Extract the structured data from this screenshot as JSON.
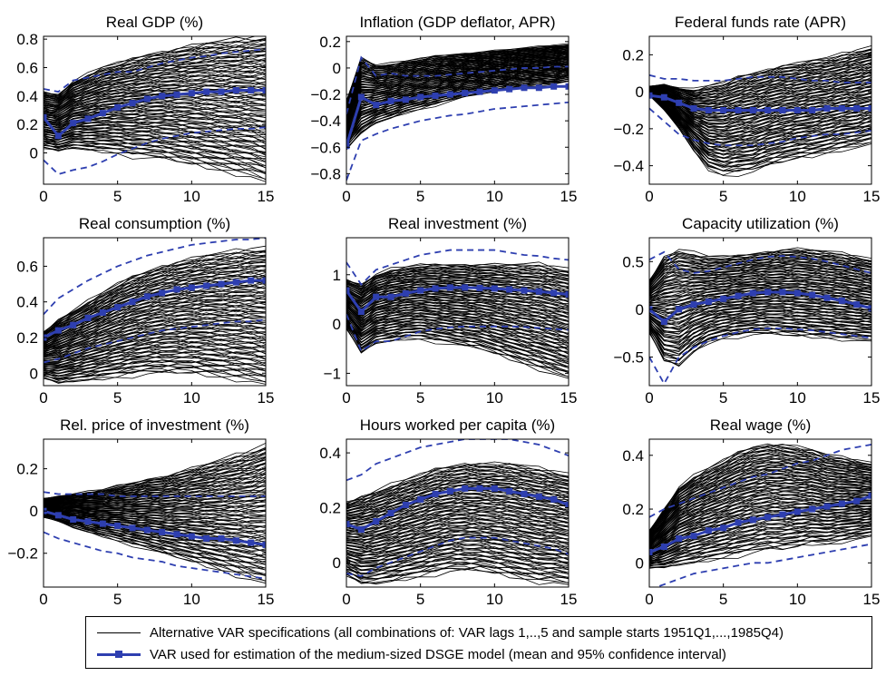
{
  "colors": {
    "alt": "#000000",
    "main": "#2e3fb0",
    "frame": "#000000"
  },
  "legend": {
    "alt_label": "Alternative VAR specifications (all combinations of: VAR lags 1,..,5 and sample starts 1951Q1,...,1985Q4)",
    "main_label": "VAR used for estimation of the medium-sized DSGE model (mean and 95% confidence interval)"
  },
  "chart_data": [
    {
      "type": "line",
      "title": "Real GDP (%)",
      "xlim": [
        0,
        15
      ],
      "ylim": [
        -0.22,
        0.82
      ],
      "xticks": [
        "0",
        "5",
        "10",
        "15"
      ],
      "yticks": [
        "0",
        "0.2",
        "0.4",
        "0.6",
        "0.8"
      ],
      "x": [
        0,
        1,
        2,
        3,
        4,
        5,
        6,
        7,
        8,
        9,
        10,
        11,
        12,
        13,
        14,
        15
      ],
      "band_low": [
        -0.05,
        -0.15,
        -0.12,
        -0.1,
        -0.06,
        -0.01,
        0.03,
        0.07,
        0.1,
        0.12,
        0.14,
        0.15,
        0.16,
        0.17,
        0.17,
        0.18
      ],
      "band_high": [
        0.45,
        0.43,
        0.51,
        0.53,
        0.55,
        0.57,
        0.57,
        0.6,
        0.63,
        0.65,
        0.67,
        0.68,
        0.7,
        0.71,
        0.72,
        0.73
      ],
      "fan_low": [
        0.03,
        0.01,
        0.03,
        0.02,
        0.01,
        0.0,
        -0.02,
        -0.03,
        -0.04,
        -0.06,
        -0.08,
        -0.1,
        -0.12,
        -0.14,
        -0.16,
        -0.2
      ],
      "fan_high": [
        0.43,
        0.41,
        0.5,
        0.55,
        0.6,
        0.63,
        0.66,
        0.69,
        0.71,
        0.73,
        0.75,
        0.77,
        0.78,
        0.79,
        0.8,
        0.82
      ],
      "series": [
        {
          "name": "VAR used for estimation of the medium-sized DSGE model (mean and 95% confidence interval)",
          "values": [
            0.25,
            0.12,
            0.21,
            0.24,
            0.28,
            0.32,
            0.35,
            0.38,
            0.4,
            0.41,
            0.42,
            0.43,
            0.43,
            0.44,
            0.44,
            0.44
          ]
        }
      ]
    },
    {
      "type": "line",
      "title": "Inflation (GDP deflator, APR)",
      "xlim": [
        0,
        15
      ],
      "ylim": [
        -0.88,
        0.24
      ],
      "xticks": [
        "0",
        "5",
        "10",
        "15"
      ],
      "yticks": [
        "-0.8",
        "-0.6",
        "-0.4",
        "-0.2",
        "0",
        "0.2"
      ],
      "x": [
        0,
        1,
        2,
        3,
        4,
        5,
        6,
        7,
        8,
        9,
        10,
        11,
        12,
        13,
        14,
        15
      ],
      "band_low": [
        -0.85,
        -0.55,
        -0.5,
        -0.46,
        -0.43,
        -0.4,
        -0.38,
        -0.36,
        -0.35,
        -0.33,
        -0.31,
        -0.3,
        -0.29,
        -0.28,
        -0.27,
        -0.26
      ],
      "band_high": [
        -0.35,
        0.08,
        -0.06,
        -0.04,
        -0.06,
        -0.06,
        -0.06,
        -0.05,
        -0.04,
        -0.03,
        -0.02,
        -0.01,
        0.0,
        0.0,
        0.01,
        0.01
      ],
      "fan_low": [
        -0.62,
        -0.5,
        -0.42,
        -0.38,
        -0.34,
        -0.31,
        -0.28,
        -0.25,
        -0.22,
        -0.2,
        -0.18,
        -0.16,
        -0.14,
        -0.13,
        -0.12,
        -0.1
      ],
      "fan_high": [
        -0.25,
        0.08,
        0.02,
        0.03,
        0.05,
        0.07,
        0.09,
        0.1,
        0.11,
        0.12,
        0.13,
        0.14,
        0.15,
        0.16,
        0.17,
        0.18
      ],
      "series": [
        {
          "name": "VAR used for estimation of the medium-sized DSGE model (mean and 95% confidence interval)",
          "values": [
            -0.59,
            -0.22,
            -0.28,
            -0.25,
            -0.24,
            -0.22,
            -0.21,
            -0.2,
            -0.19,
            -0.18,
            -0.17,
            -0.16,
            -0.15,
            -0.15,
            -0.14,
            -0.14
          ]
        }
      ]
    },
    {
      "type": "line",
      "title": "Federal funds rate (APR)",
      "xlim": [
        0,
        15
      ],
      "ylim": [
        -0.5,
        0.3
      ],
      "xticks": [
        "0",
        "5",
        "10",
        "15"
      ],
      "yticks": [
        "-0.4",
        "-0.2",
        "0",
        "0.2"
      ],
      "x": [
        0,
        1,
        2,
        3,
        4,
        5,
        6,
        7,
        8,
        9,
        10,
        11,
        12,
        13,
        14,
        15
      ],
      "band_low": [
        -0.09,
        -0.16,
        -0.23,
        -0.26,
        -0.28,
        -0.29,
        -0.29,
        -0.29,
        -0.28,
        -0.27,
        -0.25,
        -0.24,
        -0.23,
        -0.23,
        -0.22,
        -0.21
      ],
      "band_high": [
        0.09,
        0.07,
        0.07,
        0.06,
        0.06,
        0.06,
        0.07,
        0.08,
        0.08,
        0.08,
        0.07,
        0.06,
        0.06,
        0.05,
        0.05,
        0.05
      ],
      "fan_low": [
        -0.02,
        -0.1,
        -0.2,
        -0.32,
        -0.42,
        -0.45,
        -0.44,
        -0.43,
        -0.4,
        -0.38,
        -0.36,
        -0.35,
        -0.33,
        -0.31,
        -0.3,
        -0.28
      ],
      "fan_high": [
        0.03,
        0.04,
        0.02,
        0.01,
        0.03,
        0.05,
        0.08,
        0.1,
        0.12,
        0.14,
        0.15,
        0.17,
        0.18,
        0.2,
        0.22,
        0.24
      ],
      "series": [
        {
          "name": "VAR used for estimation of the medium-sized DSGE model (mean and 95% confidence interval)",
          "values": [
            -0.02,
            -0.03,
            -0.06,
            -0.09,
            -0.1,
            -0.1,
            -0.1,
            -0.1,
            -0.1,
            -0.1,
            -0.1,
            -0.1,
            -0.09,
            -0.09,
            -0.09,
            -0.09
          ]
        }
      ]
    },
    {
      "type": "line",
      "title": "Real consumption (%)",
      "xlim": [
        0,
        15
      ],
      "ylim": [
        -0.07,
        0.76
      ],
      "xticks": [
        "0",
        "5",
        "10",
        "15"
      ],
      "yticks": [
        "0",
        "0.2",
        "0.4",
        "0.6"
      ],
      "x": [
        0,
        1,
        2,
        3,
        4,
        5,
        6,
        7,
        8,
        9,
        10,
        11,
        12,
        13,
        14,
        15
      ],
      "band_low": [
        0.06,
        0.08,
        0.11,
        0.14,
        0.16,
        0.18,
        0.2,
        0.22,
        0.24,
        0.25,
        0.26,
        0.27,
        0.28,
        0.29,
        0.29,
        0.3
      ],
      "band_high": [
        0.33,
        0.42,
        0.47,
        0.52,
        0.56,
        0.6,
        0.63,
        0.66,
        0.68,
        0.7,
        0.72,
        0.73,
        0.74,
        0.75,
        0.75,
        0.76
      ],
      "fan_low": [
        -0.03,
        -0.06,
        -0.05,
        -0.04,
        -0.03,
        -0.02,
        -0.01,
        0.0,
        0.0,
        0.0,
        0.0,
        -0.01,
        -0.02,
        -0.03,
        -0.04,
        -0.06
      ],
      "fan_high": [
        0.23,
        0.3,
        0.35,
        0.4,
        0.45,
        0.5,
        0.54,
        0.57,
        0.6,
        0.62,
        0.64,
        0.66,
        0.67,
        0.68,
        0.69,
        0.7
      ],
      "series": [
        {
          "name": "VAR used for estimation of the medium-sized DSGE model (mean and 95% confidence interval)",
          "values": [
            0.2,
            0.24,
            0.27,
            0.31,
            0.34,
            0.37,
            0.4,
            0.43,
            0.45,
            0.47,
            0.48,
            0.49,
            0.5,
            0.51,
            0.52,
            0.52
          ]
        }
      ]
    },
    {
      "type": "line",
      "title": "Real investment (%)",
      "xlim": [
        0,
        15
      ],
      "ylim": [
        -1.25,
        1.75
      ],
      "xticks": [
        "0",
        "5",
        "10",
        "15"
      ],
      "yticks": [
        "-1",
        "0",
        "1"
      ],
      "x": [
        0,
        1,
        2,
        3,
        4,
        5,
        6,
        7,
        8,
        9,
        10,
        11,
        12,
        13,
        14,
        15
      ],
      "band_low": [
        0.2,
        -0.55,
        -0.35,
        -0.35,
        -0.25,
        -0.15,
        -0.1,
        -0.07,
        -0.05,
        -0.05,
        -0.05,
        -0.05,
        -0.06,
        -0.08,
        -0.1,
        -0.12
      ],
      "band_high": [
        1.25,
        0.8,
        1.1,
        1.2,
        1.3,
        1.4,
        1.45,
        1.5,
        1.5,
        1.5,
        1.5,
        1.45,
        1.4,
        1.38,
        1.33,
        1.3
      ],
      "fan_low": [
        -0.1,
        -0.6,
        -0.4,
        -0.35,
        -0.3,
        -0.3,
        -0.35,
        -0.4,
        -0.45,
        -0.5,
        -0.6,
        -0.7,
        -0.8,
        -0.9,
        -1.0,
        -1.1
      ],
      "fan_high": [
        0.9,
        0.8,
        1.0,
        1.1,
        1.15,
        1.2,
        1.2,
        1.2,
        1.2,
        1.2,
        1.2,
        1.2,
        1.2,
        1.2,
        1.15,
        1.1
      ],
      "series": [
        {
          "name": "VAR used for estimation of the medium-sized DSGE model (mean and 95% confidence interval)",
          "values": [
            0.68,
            0.25,
            0.55,
            0.55,
            0.62,
            0.68,
            0.72,
            0.74,
            0.74,
            0.73,
            0.72,
            0.7,
            0.68,
            0.66,
            0.63,
            0.6
          ]
        }
      ]
    },
    {
      "type": "line",
      "title": "Capacity utilization (%)",
      "xlim": [
        0,
        15
      ],
      "ylim": [
        -0.8,
        0.75
      ],
      "xticks": [
        "0",
        "5",
        "10",
        "15"
      ],
      "yticks": [
        "-0.5",
        "0",
        "0.5"
      ],
      "x": [
        0,
        1,
        2,
        3,
        4,
        5,
        6,
        7,
        8,
        9,
        10,
        11,
        12,
        13,
        14,
        15
      ],
      "band_low": [
        -0.5,
        -0.78,
        -0.5,
        -0.4,
        -0.33,
        -0.28,
        -0.24,
        -0.21,
        -0.2,
        -0.2,
        -0.21,
        -0.22,
        -0.24,
        -0.26,
        -0.28,
        -0.3
      ],
      "band_high": [
        0.52,
        0.6,
        0.42,
        0.38,
        0.4,
        0.44,
        0.48,
        0.52,
        0.55,
        0.56,
        0.55,
        0.53,
        0.5,
        0.46,
        0.42,
        0.38
      ],
      "fan_low": [
        -0.25,
        -0.55,
        -0.6,
        -0.45,
        -0.35,
        -0.3,
        -0.28,
        -0.26,
        -0.26,
        -0.27,
        -0.28,
        -0.29,
        -0.3,
        -0.31,
        -0.32,
        -0.33
      ],
      "fan_high": [
        0.3,
        0.55,
        0.62,
        0.58,
        0.55,
        0.55,
        0.56,
        0.58,
        0.6,
        0.62,
        0.63,
        0.62,
        0.6,
        0.58,
        0.55,
        0.52
      ],
      "series": [
        {
          "name": "VAR used for estimation of the medium-sized DSGE model (mean and 95% confidence interval)",
          "values": [
            0.0,
            -0.13,
            0.0,
            0.05,
            0.08,
            0.11,
            0.14,
            0.17,
            0.18,
            0.18,
            0.17,
            0.15,
            0.12,
            0.09,
            0.05,
            0.01
          ]
        }
      ]
    },
    {
      "type": "line",
      "title": "Rel. price of investment (%)",
      "xlim": [
        0,
        15
      ],
      "ylim": [
        -0.36,
        0.34
      ],
      "xticks": [
        "0",
        "5",
        "10",
        "15"
      ],
      "yticks": [
        "-0.2",
        "0",
        "0.2"
      ],
      "x": [
        0,
        1,
        2,
        3,
        4,
        5,
        6,
        7,
        8,
        9,
        10,
        11,
        12,
        13,
        14,
        15
      ],
      "band_low": [
        -0.1,
        -0.13,
        -0.15,
        -0.17,
        -0.19,
        -0.2,
        -0.22,
        -0.23,
        -0.24,
        -0.26,
        -0.27,
        -0.28,
        -0.29,
        -0.3,
        -0.31,
        -0.32
      ],
      "band_high": [
        0.09,
        0.08,
        0.08,
        0.08,
        0.08,
        0.07,
        0.07,
        0.07,
        0.07,
        0.07,
        0.07,
        0.07,
        0.07,
        0.07,
        0.07,
        0.07
      ],
      "fan_low": [
        -0.03,
        -0.05,
        -0.08,
        -0.1,
        -0.12,
        -0.14,
        -0.16,
        -0.18,
        -0.2,
        -0.22,
        -0.24,
        -0.26,
        -0.28,
        -0.3,
        -0.32,
        -0.34
      ],
      "fan_high": [
        0.06,
        0.07,
        0.08,
        0.09,
        0.1,
        0.12,
        0.13,
        0.15,
        0.16,
        0.18,
        0.2,
        0.22,
        0.24,
        0.26,
        0.28,
        0.31
      ],
      "series": [
        {
          "name": "VAR used for estimation of the medium-sized DSGE model (mean and 95% confidence interval)",
          "values": [
            0.0,
            -0.02,
            -0.04,
            -0.05,
            -0.06,
            -0.07,
            -0.08,
            -0.09,
            -0.1,
            -0.11,
            -0.12,
            -0.13,
            -0.13,
            -0.14,
            -0.15,
            -0.16
          ]
        }
      ]
    },
    {
      "type": "line",
      "title": "Hours worked per capita (%)",
      "xlim": [
        0,
        15
      ],
      "ylim": [
        -0.09,
        0.45
      ],
      "xticks": [
        "0",
        "5",
        "10",
        "15"
      ],
      "yticks": [
        "0",
        "0.2",
        "0.4"
      ],
      "x": [
        0,
        1,
        2,
        3,
        4,
        5,
        6,
        7,
        8,
        9,
        10,
        11,
        12,
        13,
        14,
        15
      ],
      "band_low": [
        -0.04,
        -0.05,
        -0.02,
        0.0,
        0.02,
        0.04,
        0.06,
        0.08,
        0.09,
        0.09,
        0.09,
        0.08,
        0.07,
        0.06,
        0.05,
        0.03
      ],
      "band_high": [
        0.3,
        0.32,
        0.36,
        0.38,
        0.4,
        0.42,
        0.43,
        0.44,
        0.45,
        0.45,
        0.45,
        0.45,
        0.44,
        0.43,
        0.41,
        0.39
      ],
      "fan_low": [
        -0.05,
        -0.08,
        -0.08,
        -0.07,
        -0.06,
        -0.05,
        -0.04,
        -0.03,
        -0.03,
        -0.03,
        -0.04,
        -0.05,
        -0.06,
        -0.07,
        -0.07,
        -0.08
      ],
      "fan_high": [
        0.22,
        0.24,
        0.26,
        0.28,
        0.3,
        0.32,
        0.34,
        0.35,
        0.36,
        0.36,
        0.36,
        0.36,
        0.35,
        0.34,
        0.33,
        0.32
      ],
      "series": [
        {
          "name": "VAR used for estimation of the medium-sized DSGE model (mean and 95% confidence interval)",
          "values": [
            0.14,
            0.12,
            0.15,
            0.18,
            0.21,
            0.23,
            0.25,
            0.26,
            0.27,
            0.27,
            0.27,
            0.26,
            0.25,
            0.24,
            0.23,
            0.21
          ]
        }
      ]
    },
    {
      "type": "line",
      "title": "Real wage (%)",
      "xlim": [
        0,
        15
      ],
      "ylim": [
        -0.09,
        0.46
      ],
      "xticks": [
        "0",
        "5",
        "10",
        "15"
      ],
      "yticks": [
        "0",
        "0.2",
        "0.4"
      ],
      "x": [
        0,
        1,
        2,
        3,
        4,
        5,
        6,
        7,
        8,
        9,
        10,
        11,
        12,
        13,
        14,
        15
      ],
      "band_low": [
        -0.1,
        -0.08,
        -0.06,
        -0.04,
        -0.03,
        -0.02,
        -0.01,
        0.0,
        0.0,
        0.01,
        0.02,
        0.03,
        0.04,
        0.05,
        0.06,
        0.07
      ],
      "band_high": [
        0.17,
        0.2,
        0.22,
        0.24,
        0.26,
        0.28,
        0.3,
        0.32,
        0.33,
        0.35,
        0.37,
        0.38,
        0.4,
        0.42,
        0.43,
        0.44
      ],
      "fan_low": [
        -0.02,
        -0.02,
        -0.01,
        0.0,
        0.01,
        0.02,
        0.03,
        0.04,
        0.05,
        0.05,
        0.06,
        0.07,
        0.07,
        0.08,
        0.09,
        0.1
      ],
      "fan_high": [
        0.12,
        0.2,
        0.28,
        0.32,
        0.35,
        0.38,
        0.41,
        0.43,
        0.44,
        0.44,
        0.43,
        0.42,
        0.4,
        0.39,
        0.38,
        0.37
      ],
      "series": [
        {
          "name": "VAR used for estimation of the medium-sized DSGE model (mean and 95% confidence interval)",
          "values": [
            0.04,
            0.06,
            0.09,
            0.1,
            0.12,
            0.13,
            0.15,
            0.16,
            0.17,
            0.18,
            0.19,
            0.2,
            0.21,
            0.22,
            0.23,
            0.25
          ]
        }
      ]
    }
  ]
}
